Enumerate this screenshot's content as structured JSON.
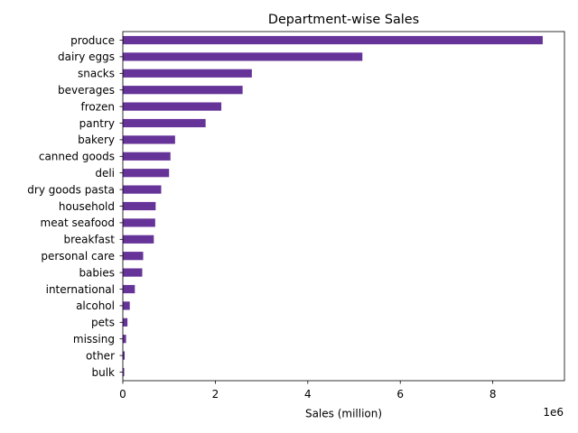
{
  "chart_data": {
    "type": "bar",
    "orientation": "horizontal",
    "title": "Department-wise Sales",
    "xlabel": "Sales (million)",
    "ylabel": "",
    "x_offset_text": "1e6",
    "xlim": [
      0,
      9.55
    ],
    "xticks": [
      0,
      2,
      4,
      6,
      8
    ],
    "grid": false,
    "bar_color": "#663399",
    "categories": [
      "produce",
      "dairy eggs",
      "snacks",
      "beverages",
      "frozen",
      "pantry",
      "bakery",
      "canned goods",
      "deli",
      "dry goods pasta",
      "household",
      "meat seafood",
      "breakfast",
      "personal care",
      "babies",
      "international",
      "alcohol",
      "pets",
      "missing",
      "other",
      "bulk"
    ],
    "values": [
      9.08,
      5.18,
      2.79,
      2.59,
      2.13,
      1.79,
      1.13,
      1.03,
      1.0,
      0.83,
      0.71,
      0.7,
      0.67,
      0.44,
      0.42,
      0.26,
      0.15,
      0.1,
      0.07,
      0.04,
      0.03
    ]
  }
}
